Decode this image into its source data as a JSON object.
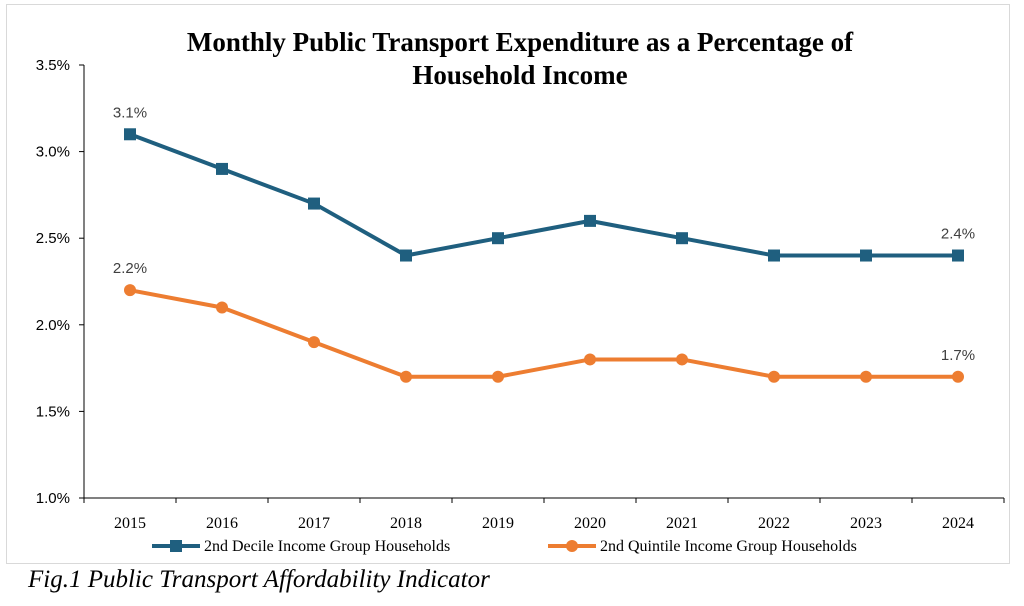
{
  "caption": "Fig.1 Public Transport Affordability Indicator",
  "chart_data": {
    "type": "line",
    "title": "Monthly Public Transport Expenditure as a Percentage of Household Income",
    "title_lines": [
      "Monthly Public Transport Expenditure as a Percentage of",
      "Household Income"
    ],
    "xlabel": "",
    "ylabel": "",
    "categories": [
      "2015",
      "2016",
      "2017",
      "2018",
      "2019",
      "2020",
      "2021",
      "2022",
      "2023",
      "2024"
    ],
    "ylim": [
      1.0,
      3.5
    ],
    "yticks": [
      "1.0%",
      "1.5%",
      "2.0%",
      "2.5%",
      "3.0%",
      "3.5%"
    ],
    "grid": false,
    "legend_position": "bottom",
    "series": [
      {
        "name": "2nd Decile Income Group Households",
        "color": "#1f5f7f",
        "marker": "square",
        "values": [
          3.1,
          2.9,
          2.7,
          2.4,
          2.5,
          2.6,
          2.5,
          2.4,
          2.4,
          2.4
        ],
        "labels": [
          {
            "index": 0,
            "text": "3.1%"
          },
          {
            "index": 9,
            "text": "2.4%"
          }
        ]
      },
      {
        "name": "2nd Quintile Income Group Households",
        "color": "#ed7d31",
        "marker": "circle",
        "values": [
          2.2,
          2.1,
          1.9,
          1.7,
          1.7,
          1.8,
          1.8,
          1.7,
          1.7,
          1.7
        ],
        "labels": [
          {
            "index": 0,
            "text": "2.2%"
          },
          {
            "index": 9,
            "text": "1.7%"
          }
        ]
      }
    ]
  }
}
